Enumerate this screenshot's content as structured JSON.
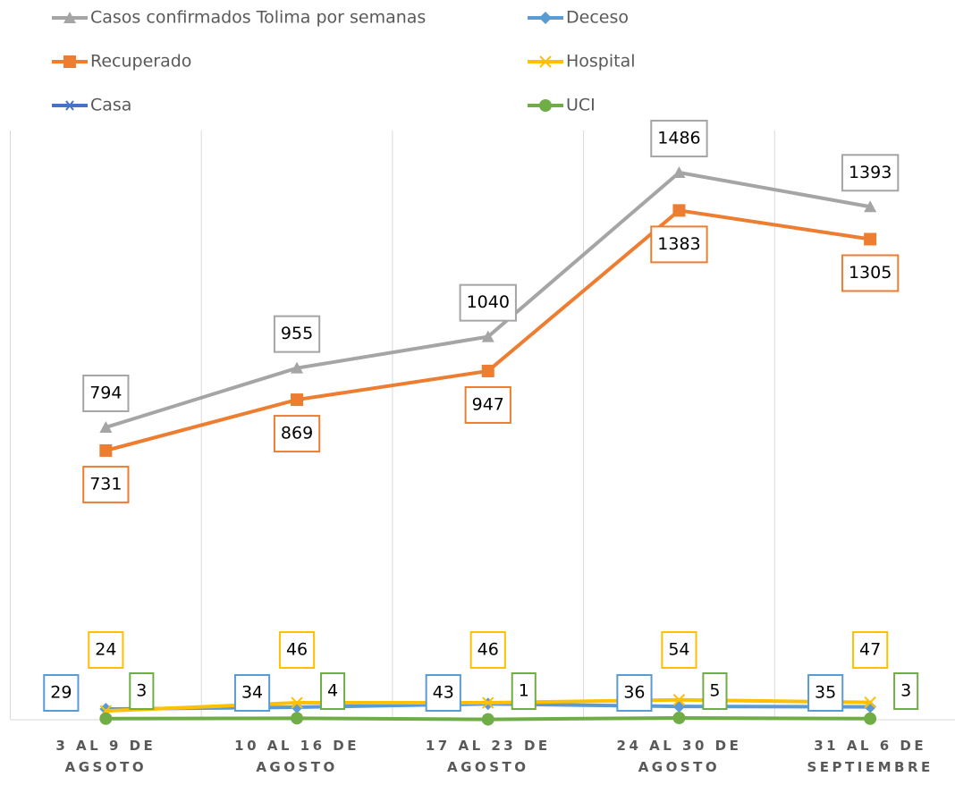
{
  "chart_data": {
    "type": "line",
    "categories": [
      "3 AL 9 DE\nAGSOTO",
      "10 AL 16 DE\nAGOSTO",
      "17 AL 23 DE\nAGOSTO",
      "24 AL 30 DE\nAGOSTO",
      "31 AL 6 DE\nSEPTIEMBRE"
    ],
    "series": [
      {
        "name": "Casos confirmados Tolima por semanas",
        "color": "#a5a5a5",
        "marker": "triangle",
        "values": [
          794,
          955,
          1040,
          1486,
          1393
        ]
      },
      {
        "name": "Deceso",
        "color": "#5b9bd5",
        "marker": "diamond",
        "values": [
          29,
          34,
          43,
          36,
          35
        ]
      },
      {
        "name": "Recuperado",
        "color": "#ed7d31",
        "marker": "square",
        "values": [
          731,
          869,
          947,
          1383,
          1305
        ]
      },
      {
        "name": "Hospital",
        "color": "#ffc000",
        "marker": "x",
        "values": [
          24,
          46,
          46,
          54,
          47
        ]
      },
      {
        "name": "Casa",
        "color": "#4472c4",
        "marker": "star",
        "values": [
          null,
          null,
          null,
          null,
          null
        ]
      },
      {
        "name": "UCI",
        "color": "#70ad47",
        "marker": "circle",
        "values": [
          3,
          4,
          1,
          5,
          3
        ]
      }
    ],
    "ylim": [
      0,
      1600
    ],
    "grid": true
  }
}
